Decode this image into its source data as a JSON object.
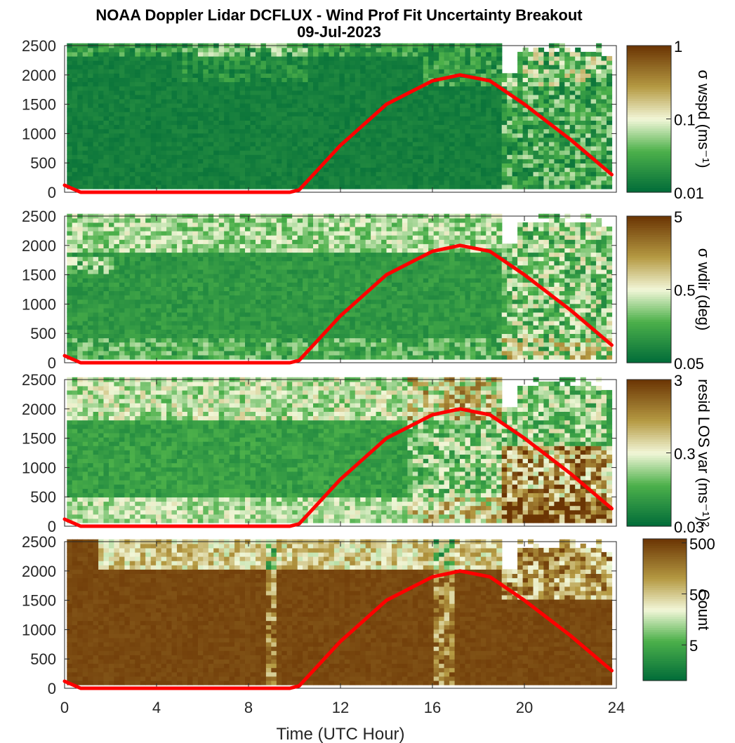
{
  "figure": {
    "title_line1": "NOAA Doppler Lidar DCFLUX - Wind Prof Fit Uncertainty Breakout",
    "title_line2": "09-Jul-2023",
    "xlabel": "Time (UTC Hour)",
    "xticks": [
      "0",
      "4",
      "8",
      "12",
      "16",
      "20",
      "24"
    ],
    "yticks": [
      "0",
      "500",
      "1000",
      "1500",
      "2000",
      "2500"
    ]
  },
  "colors": {
    "colormap_low": "#006b38",
    "colormap_mid_low": "#4cb04a",
    "colormap_mid": "#f2f7d8",
    "colormap_mid_high": "#b59a43",
    "colormap_high": "#6b3504",
    "overlay_curve": "#ff0000",
    "missing": "#ffffff"
  },
  "chart_data": [
    {
      "type": "heatmap",
      "panel": "sigma wind speed",
      "colorbar_label": "σ wspd (ms⁻¹)",
      "colorbar_scale": "log",
      "colorbar_ticks": [
        "0.01",
        "0.1",
        "1"
      ],
      "colorbar_range": [
        0.01,
        1
      ],
      "typical_value": 0.015,
      "x_range": [
        0,
        24
      ],
      "y_range": [
        0,
        2500
      ],
      "overlay_curve_x": [
        0,
        0.7,
        9.8,
        10.2,
        12,
        14,
        16,
        17.2,
        18.5,
        20,
        22,
        23.8
      ],
      "overlay_curve_y": [
        120,
        0,
        0,
        40,
        800,
        1500,
        1900,
        2000,
        1900,
        1500,
        900,
        300
      ]
    },
    {
      "type": "heatmap",
      "panel": "sigma wind direction",
      "colorbar_label": "σ wdir (deg)",
      "colorbar_scale": "log",
      "colorbar_ticks": [
        "0.05",
        "0.5",
        "5"
      ],
      "colorbar_range": [
        0.05,
        5
      ],
      "typical_value": 0.1,
      "x_range": [
        0,
        24
      ],
      "y_range": [
        0,
        2500
      ],
      "overlay_curve_x": [
        0,
        0.7,
        9.8,
        10.2,
        12,
        14,
        16,
        17.2,
        18.5,
        20,
        22,
        23.8
      ],
      "overlay_curve_y": [
        120,
        0,
        0,
        40,
        800,
        1500,
        1900,
        2000,
        1900,
        1500,
        900,
        300
      ]
    },
    {
      "type": "heatmap",
      "panel": "residual LOS variance",
      "colorbar_label": "resid LOS var (ms⁻¹)²",
      "colorbar_scale": "log",
      "colorbar_ticks": [
        "0.03",
        "0.3",
        "3"
      ],
      "colorbar_range": [
        0.03,
        3
      ],
      "typical_value": 0.1,
      "x_range": [
        0,
        24
      ],
      "y_range": [
        0,
        2500
      ],
      "overlay_curve_x": [
        0,
        0.7,
        9.8,
        10.2,
        12,
        14,
        16,
        17.2,
        18.5,
        20,
        22,
        23.8
      ],
      "overlay_curve_y": [
        120,
        0,
        0,
        40,
        800,
        1500,
        1900,
        2000,
        1900,
        1500,
        900,
        300
      ]
    },
    {
      "type": "heatmap",
      "panel": "count",
      "colorbar_label": "Count",
      "colorbar_scale": "log",
      "colorbar_ticks": [
        "5",
        "50",
        "500"
      ],
      "colorbar_range": [
        1,
        600
      ],
      "typical_value": 500,
      "x_range": [
        0,
        24
      ],
      "y_range": [
        0,
        2500
      ],
      "overlay_curve_x": [
        0,
        0.7,
        9.8,
        10.2,
        12,
        14,
        16,
        17.2,
        18.5,
        20,
        22,
        23.8
      ],
      "overlay_curve_y": [
        120,
        0,
        0,
        40,
        800,
        1500,
        1900,
        2000,
        1900,
        1500,
        900,
        300
      ]
    }
  ]
}
